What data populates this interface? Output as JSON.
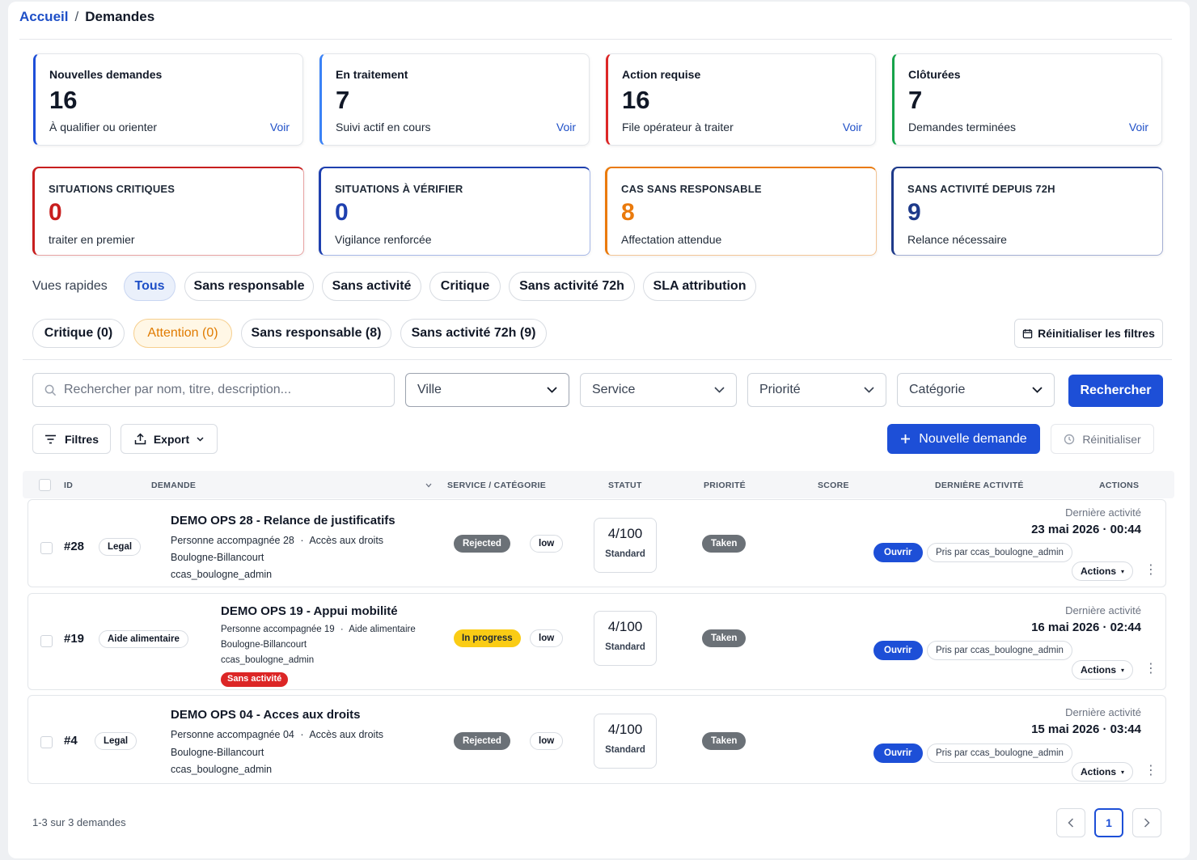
{
  "breadcrumb": {
    "home": "Accueil",
    "separator": "/",
    "current": "Demandes"
  },
  "summary_cards": [
    {
      "title": "Nouvelles demandes",
      "value": "16",
      "subtitle": "À qualifier ou orienter",
      "link": "Voir",
      "accent": "#1d4ed8"
    },
    {
      "title": "En traitement",
      "value": "7",
      "subtitle": "Suivi actif en cours",
      "link": "Voir",
      "accent": "#3b82f6"
    },
    {
      "title": "Action requise",
      "value": "16",
      "subtitle": "File opérateur à traiter",
      "link": "Voir",
      "accent": "#dc2626"
    },
    {
      "title": "Clôturées",
      "value": "7",
      "subtitle": "Demandes terminées",
      "link": "Voir",
      "accent": "#16a34a"
    }
  ],
  "stat_cards": [
    {
      "title": "SITUATIONS CRITIQUES",
      "value": "0",
      "subtitle": "traiter en premier",
      "color": "#c81e1e"
    },
    {
      "title": "SITUATIONS À VÉRIFIER",
      "value": "0",
      "subtitle": "Vigilance renforcée",
      "color": "#1e40af"
    },
    {
      "title": "CAS SANS RESPONSABLE",
      "value": "8",
      "subtitle": "Affectation attendue",
      "color": "#ea7a0c"
    },
    {
      "title": "SANS ACTIVITÉ DEPUIS 72H",
      "value": "9",
      "subtitle": "Relance nécessaire",
      "color": "#1e3a8a"
    }
  ],
  "quick_views": {
    "label": "Vues rapides",
    "items": [
      "Tous",
      "Sans responsable",
      "Sans activité",
      "Critique",
      "Sans activité 72h",
      "SLA attribution"
    ]
  },
  "quick_filters": {
    "items": [
      "Critique (0)",
      "Attention (0)",
      "Sans responsable (8)",
      "Sans activité 72h (9)"
    ],
    "reset_label": "Réinitialiser les filtres"
  },
  "search": {
    "placeholder": "Rechercher par nom, titre, description...",
    "selects": [
      "Ville",
      "Service",
      "Priorité",
      "Catégorie"
    ],
    "submit_label": "Rechercher"
  },
  "toolbar": {
    "filters_label": "Filtres",
    "export_label": "Export",
    "new_label": "Nouvelle demande",
    "reset_label": "Réinitialiser"
  },
  "table": {
    "headers": [
      "ID",
      "DEMANDE",
      "SERVICE / CATÉGORIE",
      "STATUT",
      "PRIORITÉ",
      "SCORE",
      "DERNIÈRE ACTIVITÉ",
      "ACTIONS"
    ],
    "rows": [
      {
        "id": "#28",
        "category": "Legal",
        "title": "DEMO OPS 28 - Relance de justificatifs",
        "person": "Personne accompagnée 28",
        "service": "Accès aux droits",
        "city": "Boulogne-Billancourt",
        "owner": "ccas_boulogne_admin",
        "alert": "",
        "status": "Rejected",
        "priority": "low",
        "score": "4/100",
        "score_label": "Standard",
        "state": "Taken",
        "activity_label": "Dernière activité",
        "activity_date": "23 mai 2026 · 00:44",
        "open_label": "Ouvrir",
        "taken_by": "Pris par ccas_boulogne_admin",
        "actions_label": "Actions"
      },
      {
        "id": "#19",
        "category": "Aide alimentaire",
        "title": "DEMO OPS 19 - Appui mobilité",
        "person": "Personne accompagnée 19",
        "service": "Aide alimentaire",
        "city": "Boulogne-Billancourt",
        "owner": "ccas_boulogne_admin",
        "alert": "Sans activité",
        "status": "In progress",
        "priority": "low",
        "score": "4/100",
        "score_label": "Standard",
        "state": "Taken",
        "activity_label": "Dernière activité",
        "activity_date": "16 mai 2026 · 02:44",
        "open_label": "Ouvrir",
        "taken_by": "Pris par ccas_boulogne_admin",
        "actions_label": "Actions"
      },
      {
        "id": "#4",
        "category": "Legal",
        "title": "DEMO OPS 04 - Acces aux droits",
        "person": "Personne accompagnée 04",
        "service": "Accès aux droits",
        "city": "Boulogne-Billancourt",
        "owner": "ccas_boulogne_admin",
        "alert": "",
        "status": "Rejected",
        "priority": "low",
        "score": "4/100",
        "score_label": "Standard",
        "state": "Taken",
        "activity_label": "Dernière activité",
        "activity_date": "15 mai 2026 · 03:44",
        "open_label": "Ouvrir",
        "taken_by": "Pris par ccas_boulogne_admin",
        "actions_label": "Actions"
      }
    ]
  },
  "pagination": {
    "summary": "1-3 sur 3 demandes",
    "current_page": "1",
    "prev_icon": "chevron-left-icon",
    "next_icon": "chevron-right-icon"
  },
  "colors": {
    "primary": "#1d4fd7",
    "in_progress": "#facc15",
    "alert": "#dc2626",
    "status_dark": "#6b7177"
  }
}
